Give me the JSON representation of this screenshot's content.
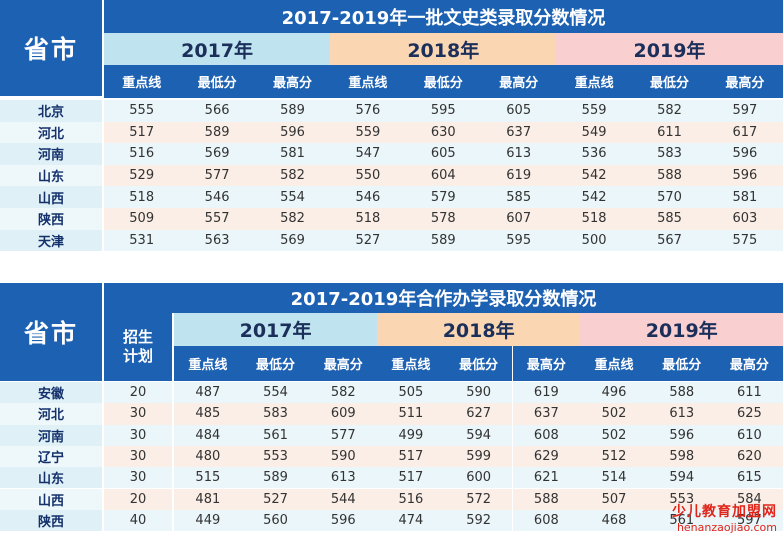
{
  "table1": {
    "title": "2017-2019年一批文史类录取分数情况",
    "province_header": "省市",
    "years": [
      "2017年",
      "2018年",
      "2019年"
    ],
    "subheaders": [
      "重点线",
      "最低分",
      "最高分"
    ],
    "rows": [
      {
        "prov": "北京",
        "values": [
          555,
          566,
          589,
          576,
          595,
          605,
          559,
          582,
          597
        ]
      },
      {
        "prov": "河北",
        "values": [
          517,
          589,
          596,
          559,
          630,
          637,
          549,
          611,
          617
        ]
      },
      {
        "prov": "河南",
        "values": [
          516,
          569,
          581,
          547,
          605,
          613,
          536,
          583,
          596
        ]
      },
      {
        "prov": "山东",
        "values": [
          529,
          577,
          582,
          550,
          604,
          619,
          542,
          588,
          596
        ]
      },
      {
        "prov": "山西",
        "values": [
          518,
          546,
          554,
          546,
          579,
          585,
          542,
          570,
          581
        ]
      },
      {
        "prov": "陕西",
        "values": [
          509,
          557,
          582,
          518,
          578,
          607,
          518,
          585,
          603
        ]
      },
      {
        "prov": "天津",
        "values": [
          531,
          563,
          569,
          527,
          589,
          595,
          500,
          567,
          575
        ]
      }
    ]
  },
  "table2": {
    "title": "2017-2019年合作办学录取分数情况",
    "province_header": "省市",
    "quota_header_1": "招生",
    "quota_header_2": "计划",
    "years": [
      "2017年",
      "2018年",
      "2019年"
    ],
    "subheaders": [
      "重点线",
      "最低分",
      "最高分"
    ],
    "rows": [
      {
        "prov": "安徽",
        "quota": 20,
        "values": [
          487,
          554,
          582,
          505,
          590,
          619,
          496,
          588,
          611
        ]
      },
      {
        "prov": "河北",
        "quota": 30,
        "values": [
          485,
          583,
          609,
          511,
          627,
          637,
          502,
          613,
          625
        ]
      },
      {
        "prov": "河南",
        "quota": 30,
        "values": [
          484,
          561,
          577,
          499,
          594,
          608,
          502,
          596,
          610
        ]
      },
      {
        "prov": "辽宁",
        "quota": 30,
        "values": [
          480,
          553,
          590,
          517,
          599,
          629,
          512,
          598,
          620
        ]
      },
      {
        "prov": "山东",
        "quota": 30,
        "values": [
          515,
          589,
          613,
          517,
          600,
          621,
          514,
          594,
          615
        ]
      },
      {
        "prov": "山西",
        "quota": 20,
        "values": [
          481,
          527,
          544,
          516,
          572,
          588,
          507,
          553,
          584
        ]
      },
      {
        "prov": "陕西",
        "quota": 40,
        "values": [
          449,
          560,
          596,
          474,
          592,
          608,
          468,
          561,
          597
        ]
      }
    ]
  },
  "watermark": {
    "line1": "少儿教育加盟网",
    "line2": "henanzaojiao.com"
  }
}
